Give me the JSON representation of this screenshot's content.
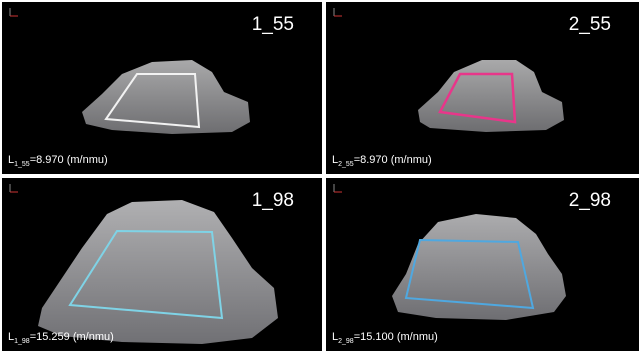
{
  "panels": [
    {
      "title": "1_55",
      "label_main": "L",
      "label_sub": "1_55",
      "label_value": "=8.970 (m/nmu)"
    },
    {
      "title": "2_55",
      "label_main": "L",
      "label_sub": "2_55",
      "label_value": "=8.970 (m/nmu)"
    },
    {
      "title": "1_98",
      "label_main": "L",
      "label_sub": "1_98",
      "label_value": "=15.259 (m/nmu)"
    },
    {
      "title": "2_98",
      "label_main": "L",
      "label_sub": "2_98",
      "label_value": "=15.100 (m/nmu)"
    }
  ]
}
